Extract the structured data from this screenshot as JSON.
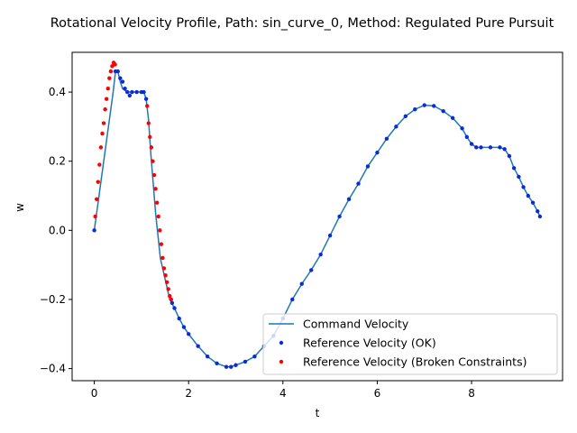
{
  "chart_data": {
    "type": "line",
    "title": "Rotational Velocity Profile, Path: sin_curve_0, Method: Regulated Pure Pursuit",
    "xlabel": "t",
    "ylabel": "w",
    "xlim": [
      -0.47,
      9.93
    ],
    "ylim": [
      -0.435,
      0.515
    ],
    "xticks": [
      0,
      2,
      4,
      6,
      8
    ],
    "yticks": [
      -0.4,
      -0.2,
      0.0,
      0.2,
      0.4
    ],
    "xtick_labels": [
      "0",
      "2",
      "4",
      "6",
      "8"
    ],
    "ytick_labels": [
      "−0.4",
      "−0.2",
      "0.0",
      "0.2",
      "0.4"
    ],
    "grid": false,
    "legend_position": "bottom-right",
    "colors": {
      "command": "#1f77b4",
      "ok": "#0a2bdc",
      "broken": "#ff0000"
    },
    "series": [
      {
        "name": "Command Velocity",
        "kind": "line",
        "color": "#1f77b4",
        "x": [
          0.0,
          0.05,
          0.1,
          0.2,
          0.3,
          0.4,
          0.45,
          0.5,
          0.55,
          0.6,
          0.7,
          0.8,
          0.9,
          1.0,
          1.05,
          1.1,
          1.15,
          1.2,
          1.3,
          1.4,
          1.5,
          1.6,
          1.7,
          1.8,
          1.9,
          2.0,
          2.2,
          2.4,
          2.6,
          2.8,
          2.9,
          3.0,
          3.2,
          3.4,
          3.6,
          3.8,
          4.0,
          4.2,
          4.4,
          4.6,
          4.8,
          5.0,
          5.2,
          5.4,
          5.6,
          5.8,
          6.0,
          6.2,
          6.4,
          6.6,
          6.8,
          7.0,
          7.2,
          7.4,
          7.6,
          7.8,
          7.9,
          8.0,
          8.1,
          8.2,
          8.4,
          8.6,
          8.7,
          8.8,
          8.9,
          9.0,
          9.1,
          9.2,
          9.3,
          9.4,
          9.45
        ],
        "y": [
          0.0,
          0.05,
          0.1,
          0.2,
          0.3,
          0.4,
          0.46,
          0.46,
          0.43,
          0.41,
          0.4,
          0.4,
          0.4,
          0.4,
          0.4,
          0.38,
          0.32,
          0.22,
          0.05,
          -0.08,
          -0.14,
          -0.2,
          -0.225,
          -0.255,
          -0.28,
          -0.3,
          -0.335,
          -0.365,
          -0.385,
          -0.395,
          -0.395,
          -0.39,
          -0.38,
          -0.365,
          -0.335,
          -0.305,
          -0.255,
          -0.2,
          -0.155,
          -0.115,
          -0.07,
          -0.015,
          0.04,
          0.09,
          0.135,
          0.185,
          0.225,
          0.265,
          0.3,
          0.33,
          0.35,
          0.362,
          0.36,
          0.345,
          0.325,
          0.295,
          0.27,
          0.25,
          0.24,
          0.24,
          0.24,
          0.24,
          0.235,
          0.215,
          0.18,
          0.155,
          0.125,
          0.1,
          0.08,
          0.055,
          0.04
        ]
      },
      {
        "name": "Reference Velocity (OK)",
        "kind": "scatter",
        "color": "#0a2bdc",
        "x": [
          0.0,
          0.45,
          0.5,
          0.55,
          0.6,
          0.65,
          0.7,
          0.75,
          0.8,
          0.9,
          1.0,
          1.05,
          1.1,
          1.65,
          1.7,
          1.8,
          1.9,
          2.0,
          2.2,
          2.4,
          2.6,
          2.8,
          2.9,
          3.0,
          3.2,
          3.4,
          3.6,
          3.8,
          4.0,
          4.2,
          4.4,
          4.6,
          4.8,
          5.0,
          5.2,
          5.4,
          5.6,
          5.8,
          6.0,
          6.2,
          6.4,
          6.6,
          6.8,
          7.0,
          7.2,
          7.4,
          7.6,
          7.8,
          7.9,
          8.0,
          8.1,
          8.2,
          8.4,
          8.6,
          8.7,
          8.8,
          8.9,
          9.0,
          9.1,
          9.2,
          9.3,
          9.4,
          9.45
        ],
        "y": [
          0.0,
          0.46,
          0.46,
          0.44,
          0.43,
          0.41,
          0.4,
          0.39,
          0.4,
          0.4,
          0.4,
          0.4,
          0.38,
          -0.21,
          -0.225,
          -0.255,
          -0.28,
          -0.3,
          -0.335,
          -0.365,
          -0.385,
          -0.395,
          -0.395,
          -0.39,
          -0.38,
          -0.365,
          -0.335,
          -0.305,
          -0.255,
          -0.2,
          -0.155,
          -0.115,
          -0.07,
          -0.015,
          0.04,
          0.09,
          0.135,
          0.185,
          0.225,
          0.265,
          0.3,
          0.33,
          0.35,
          0.362,
          0.36,
          0.345,
          0.325,
          0.295,
          0.27,
          0.25,
          0.24,
          0.24,
          0.24,
          0.24,
          0.235,
          0.215,
          0.18,
          0.155,
          0.125,
          0.1,
          0.08,
          0.055,
          0.04
        ]
      },
      {
        "name": "Reference Velocity (Broken Constraints)",
        "kind": "scatter",
        "color": "#ff0000",
        "x": [
          0.02,
          0.05,
          0.08,
          0.11,
          0.14,
          0.17,
          0.2,
          0.23,
          0.26,
          0.29,
          0.32,
          0.35,
          0.38,
          0.41,
          0.44,
          1.12,
          1.15,
          1.18,
          1.21,
          1.24,
          1.27,
          1.3,
          1.33,
          1.36,
          1.39,
          1.42,
          1.45,
          1.48,
          1.51,
          1.54,
          1.57,
          1.6,
          1.63
        ],
        "y": [
          0.04,
          0.09,
          0.14,
          0.19,
          0.24,
          0.28,
          0.31,
          0.35,
          0.38,
          0.41,
          0.44,
          0.46,
          0.475,
          0.485,
          0.48,
          0.36,
          0.31,
          0.27,
          0.24,
          0.2,
          0.16,
          0.12,
          0.08,
          0.04,
          0.0,
          -0.04,
          -0.08,
          -0.11,
          -0.13,
          -0.15,
          -0.17,
          -0.19,
          -0.2
        ]
      }
    ]
  }
}
